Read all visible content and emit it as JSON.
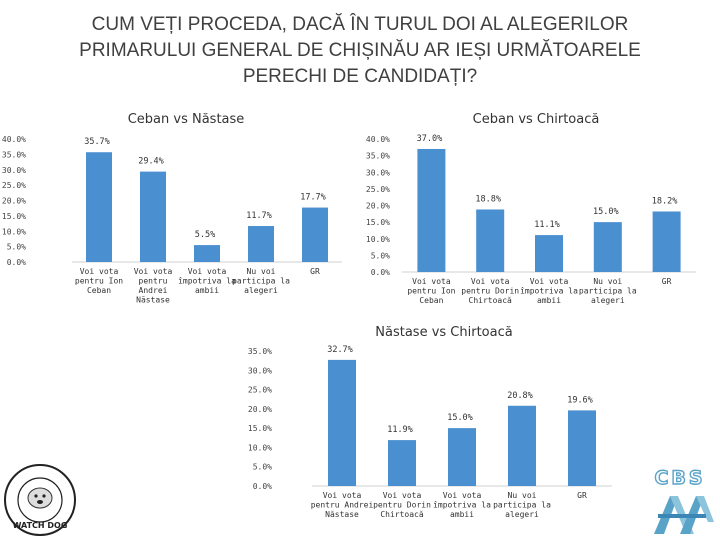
{
  "title": "CUM VEȚI PROCEDA, DACĂ ÎN TURUL DOI AL ALEGERILOR PRIMARULUI GENERAL DE CHIȘINĂU AR IEȘI URMĂTOARELE PERECHI DE CANDIDAȚI?",
  "colors": {
    "bar": "#4a8fcf",
    "logo_accent": "#5aa3c8"
  },
  "watermark_text": "WATCH DOG",
  "logo_text": "CBS",
  "chart_data": [
    {
      "type": "bar",
      "title": "Ceban vs Năstase",
      "categories": [
        "Voi vota pentru Ion Ceban",
        "Voi vota pentru Andrei Năstase",
        "Voi vota împotriva la ambii",
        "Nu voi participa la alegeri",
        "GR"
      ],
      "category_lines": [
        [
          "Voi vota",
          "pentru Ion",
          "Ceban"
        ],
        [
          "Voi vota",
          "pentru",
          "Andrei",
          "Năstase"
        ],
        [
          "Voi vota",
          "împotriva la",
          "ambii"
        ],
        [
          "Nu voi",
          "participa la",
          "alegeri"
        ],
        [
          "GR"
        ]
      ],
      "values": [
        35.7,
        29.4,
        5.5,
        11.7,
        17.7
      ],
      "value_labels": [
        "35.7%",
        "29.4%",
        "5.5%",
        "11.7%",
        "17.7%"
      ],
      "ylim": [
        0,
        40
      ],
      "yticks": [
        "0.0%",
        "5.0%",
        "10.0%",
        "15.0%",
        "20.0%",
        "25.0%",
        "30.0%",
        "35.0%",
        "40.0%"
      ],
      "grid": false
    },
    {
      "type": "bar",
      "title": "Ceban vs Chirtoacă",
      "categories": [
        "Voi vota pentru Ion Ceban",
        "Voi vota pentru Dorin Chirtoacă",
        "Voi vota împotriva la ambii",
        "Nu voi participa la alegeri",
        "GR"
      ],
      "category_lines": [
        [
          "Voi vota",
          "pentru Ion",
          "Ceban"
        ],
        [
          "Voi vota",
          "pentru Dorin",
          "Chirtoacă"
        ],
        [
          "Voi vota",
          "împotriva la",
          "ambii"
        ],
        [
          "Nu voi",
          "participa la",
          "alegeri"
        ],
        [
          "GR"
        ]
      ],
      "values": [
        37.0,
        18.8,
        11.1,
        15.0,
        18.2
      ],
      "value_labels": [
        "37.0%",
        "18.8%",
        "11.1%",
        "15.0%",
        "18.2%"
      ],
      "ylim": [
        0,
        40
      ],
      "yticks": [
        "0.0%",
        "5.0%",
        "10.0%",
        "15.0%",
        "20.0%",
        "25.0%",
        "30.0%",
        "35.0%",
        "40.0%"
      ],
      "grid": false
    },
    {
      "type": "bar",
      "title": "Năstase vs Chirtoacă",
      "categories": [
        "Voi vota pentru Andrei Năstase",
        "Voi vota pentru Dorin Chirtoacă",
        "Voi vota împotriva la ambii",
        "Nu voi participa la alegeri",
        "GR"
      ],
      "category_lines": [
        [
          "Voi vota",
          "pentru Andrei",
          "Năstase"
        ],
        [
          "Voi vota",
          "pentru Dorin",
          "Chirtoacă"
        ],
        [
          "Voi vota",
          "împotriva la",
          "ambii"
        ],
        [
          "Nu voi",
          "participa la",
          "alegeri"
        ],
        [
          "GR"
        ]
      ],
      "values": [
        32.7,
        11.9,
        15.0,
        20.8,
        19.6
      ],
      "value_labels": [
        "32.7%",
        "11.9%",
        "15.0%",
        "20.8%",
        "19.6%"
      ],
      "ylim": [
        0,
        35
      ],
      "yticks": [
        "0.0%",
        "5.0%",
        "10.0%",
        "15.0%",
        "20.0%",
        "25.0%",
        "30.0%",
        "35.0%"
      ],
      "grid": false
    }
  ]
}
